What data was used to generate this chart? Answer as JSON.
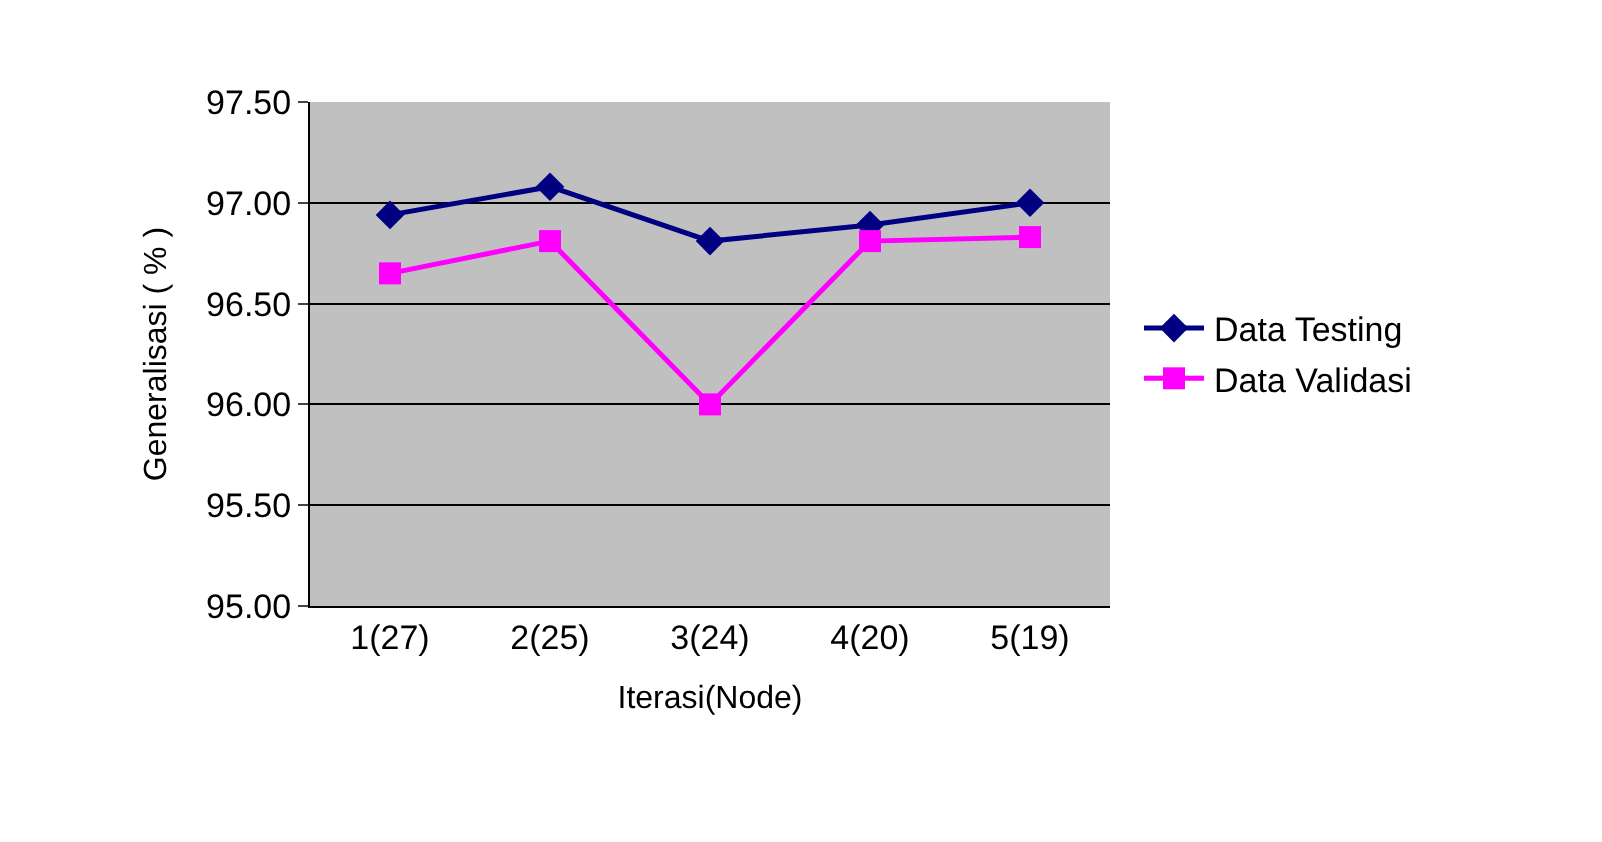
{
  "chart_data": {
    "type": "line",
    "xlabel": "Iterasi(Node)",
    "ylabel": "Generalisasi ( % )",
    "categories": [
      "1(27)",
      "2(25)",
      "3(24)",
      "4(20)",
      "5(19)"
    ],
    "series": [
      {
        "name": "Data Testing",
        "color": "#000080",
        "marker": "diamond",
        "values": [
          96.94,
          97.08,
          96.81,
          96.89,
          97.0
        ]
      },
      {
        "name": "Data Validasi",
        "color": "#ff00ff",
        "marker": "square",
        "values": [
          96.65,
          96.81,
          96.0,
          96.81,
          96.83
        ]
      }
    ],
    "ylim": [
      95.0,
      97.5
    ],
    "yticks": [
      {
        "value": 95.0,
        "label": "95.00"
      },
      {
        "value": 95.5,
        "label": "95.50"
      },
      {
        "value": 96.0,
        "label": "96.00"
      },
      {
        "value": 96.5,
        "label": "96.50"
      },
      {
        "value": 97.0,
        "label": "97.00"
      },
      {
        "value": 97.5,
        "label": "97.50"
      }
    ],
    "grid": "y",
    "legend": "right",
    "line_style": "solid"
  }
}
